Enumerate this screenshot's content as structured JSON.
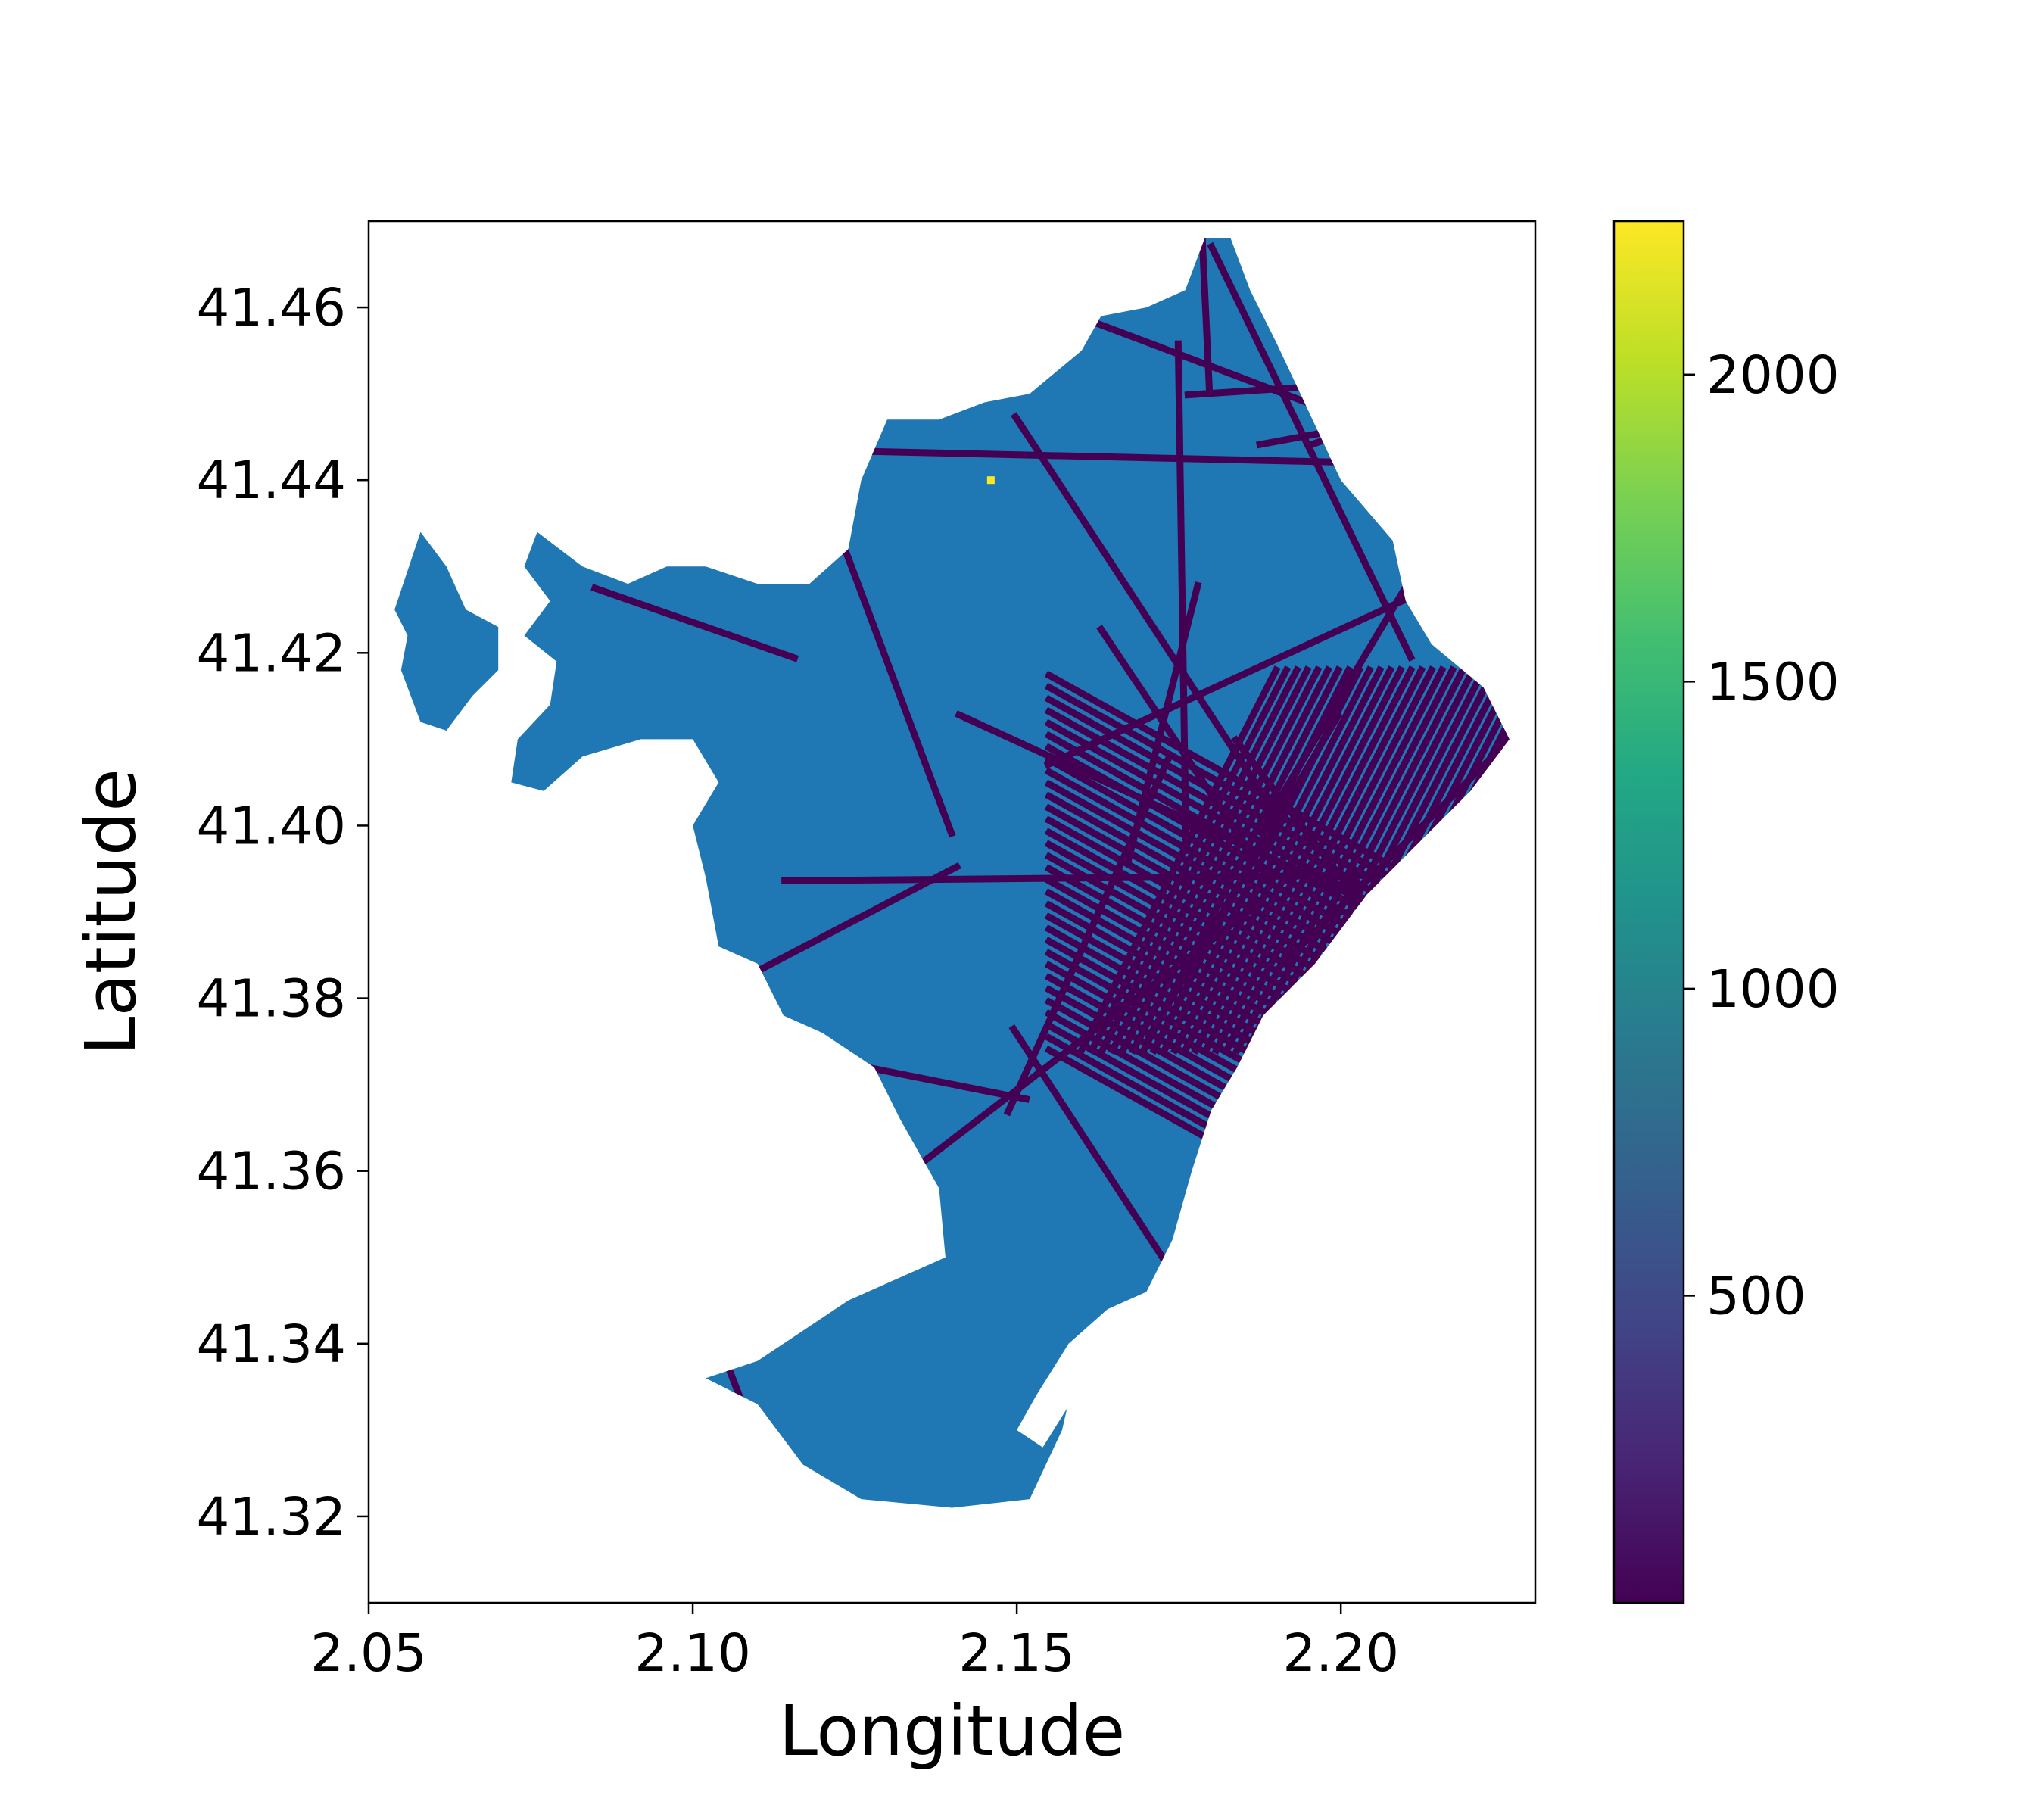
{
  "chart_data": {
    "type": "heatmap",
    "title": "",
    "xlabel": "Longitude",
    "ylabel": "Latitude",
    "xlim": [
      2.05,
      2.23
    ],
    "ylim": [
      41.31,
      41.47
    ],
    "x_ticks": [
      "2.05",
      "2.10",
      "2.15",
      "2.20"
    ],
    "x_tick_values": [
      2.05,
      2.1,
      2.15,
      2.2
    ],
    "y_ticks": [
      "41.32",
      "41.34",
      "41.36",
      "41.38",
      "41.40",
      "41.42",
      "41.44",
      "41.46"
    ],
    "y_tick_values": [
      41.32,
      41.34,
      41.36,
      41.38,
      41.4,
      41.42,
      41.44,
      41.46
    ],
    "colorbar": {
      "colormap": "viridis",
      "range": [
        0,
        2250
      ],
      "ticks": [
        "500",
        "1000",
        "1500",
        "2000"
      ],
      "tick_values": [
        500,
        1000,
        1500,
        2000
      ]
    },
    "region_fill_color": "#1f77b4",
    "network_color": "#440154",
    "hotspot": {
      "lon": 2.146,
      "lat": 41.44,
      "value": 2250
    },
    "region_outline": [
      [
        2.054,
        41.425
      ],
      [
        2.058,
        41.434
      ],
      [
        2.062,
        41.43
      ],
      [
        2.065,
        41.425
      ],
      [
        2.07,
        41.423
      ],
      [
        2.07,
        41.418
      ],
      [
        2.066,
        41.415
      ],
      [
        2.062,
        41.411
      ],
      [
        2.058,
        41.412
      ],
      [
        2.055,
        41.418
      ],
      [
        2.056,
        41.422
      ],
      [
        2.054,
        41.425
      ]
    ],
    "region_outline_main": [
      [
        2.073,
        41.41
      ],
      [
        2.072,
        41.405
      ],
      [
        2.077,
        41.404
      ],
      [
        2.083,
        41.408
      ],
      [
        2.092,
        41.41
      ],
      [
        2.1,
        41.41
      ],
      [
        2.104,
        41.405
      ],
      [
        2.1,
        41.4
      ],
      [
        2.102,
        41.394
      ],
      [
        2.104,
        41.386
      ],
      [
        2.11,
        41.384
      ],
      [
        2.114,
        41.378
      ],
      [
        2.12,
        41.376
      ],
      [
        2.128,
        41.372
      ],
      [
        2.132,
        41.366
      ],
      [
        2.138,
        41.358
      ],
      [
        2.139,
        41.35
      ],
      [
        2.124,
        41.345
      ],
      [
        2.11,
        41.338
      ],
      [
        2.102,
        41.336
      ],
      [
        2.11,
        41.333
      ],
      [
        2.117,
        41.326
      ],
      [
        2.126,
        41.322
      ],
      [
        2.14,
        41.321
      ],
      [
        2.152,
        41.322
      ],
      [
        2.157,
        41.33
      ],
      [
        2.16,
        41.34
      ],
      [
        2.164,
        41.344
      ],
      [
        2.17,
        41.346
      ],
      [
        2.174,
        41.352
      ],
      [
        2.177,
        41.36
      ],
      [
        2.18,
        41.367
      ],
      [
        2.184,
        41.372
      ],
      [
        2.188,
        41.378
      ],
      [
        2.196,
        41.384
      ],
      [
        2.204,
        41.392
      ],
      [
        2.212,
        41.398
      ],
      [
        2.22,
        41.404
      ],
      [
        2.226,
        41.41
      ],
      [
        2.222,
        41.416
      ],
      [
        2.214,
        41.421
      ],
      [
        2.21,
        41.426
      ],
      [
        2.208,
        41.433
      ],
      [
        2.2,
        41.44
      ],
      [
        2.195,
        41.448
      ],
      [
        2.19,
        41.456
      ],
      [
        2.186,
        41.462
      ],
      [
        2.183,
        41.468
      ],
      [
        2.179,
        41.468
      ],
      [
        2.176,
        41.462
      ],
      [
        2.17,
        41.46
      ],
      [
        2.163,
        41.459
      ],
      [
        2.16,
        41.455
      ],
      [
        2.152,
        41.45
      ],
      [
        2.145,
        41.449
      ],
      [
        2.138,
        41.447
      ],
      [
        2.13,
        41.447
      ],
      [
        2.126,
        41.44
      ],
      [
        2.124,
        41.432
      ],
      [
        2.118,
        41.428
      ],
      [
        2.11,
        41.428
      ],
      [
        2.102,
        41.43
      ],
      [
        2.096,
        41.43
      ],
      [
        2.09,
        41.428
      ],
      [
        2.083,
        41.43
      ],
      [
        2.076,
        41.434
      ],
      [
        2.074,
        41.43
      ],
      [
        2.078,
        41.426
      ],
      [
        2.074,
        41.422
      ],
      [
        2.079,
        41.419
      ],
      [
        2.078,
        41.414
      ],
      [
        2.073,
        41.41
      ]
    ],
    "port_cutout": [
      [
        2.192,
        41.38
      ],
      [
        2.186,
        41.374
      ],
      [
        2.182,
        41.366
      ],
      [
        2.178,
        41.36
      ],
      [
        2.173,
        41.35
      ],
      [
        2.172,
        41.338
      ],
      [
        2.171,
        41.328
      ],
      [
        2.172,
        41.318
      ],
      [
        2.174,
        41.318
      ],
      [
        2.176,
        41.33
      ],
      [
        2.178,
        41.344
      ],
      [
        2.183,
        41.356
      ],
      [
        2.188,
        41.364
      ],
      [
        2.192,
        41.372
      ],
      [
        2.196,
        41.378
      ],
      [
        2.192,
        41.38
      ]
    ],
    "port_cutout_2": [
      [
        2.164,
        41.344
      ],
      [
        2.158,
        41.34
      ],
      [
        2.153,
        41.334
      ],
      [
        2.15,
        41.33
      ],
      [
        2.154,
        41.328
      ],
      [
        2.159,
        41.334
      ],
      [
        2.163,
        41.34
      ],
      [
        2.164,
        41.344
      ]
    ]
  }
}
